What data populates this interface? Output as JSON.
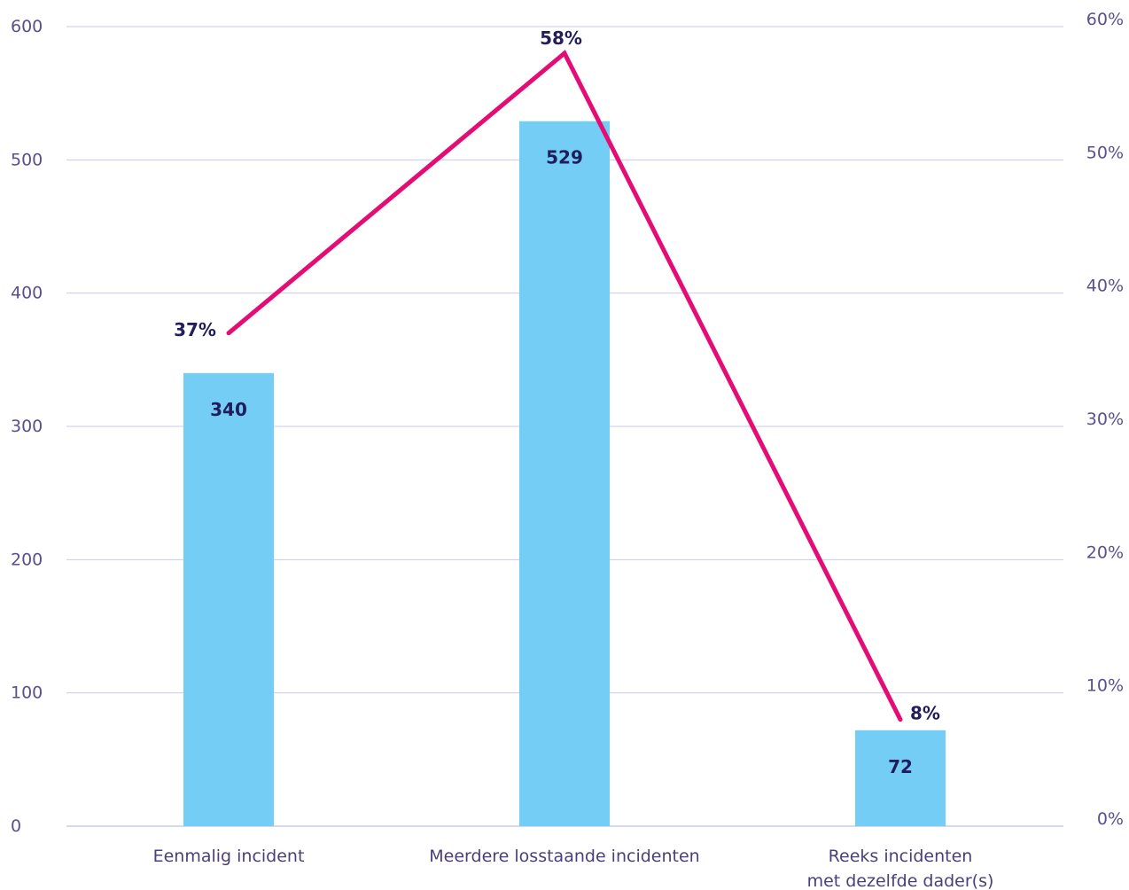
{
  "chart_data": {
    "type": "bar",
    "categories": [
      "Eenmalig incident",
      "Meerdere losstaande incidenten",
      "Reeks incidenten met dezelfde dader(s)"
    ],
    "category_lines": [
      [
        "Eenmalig incident"
      ],
      [
        "Meerdere losstaande incidenten"
      ],
      [
        "Reeks incidenten",
        "met dezelfde dader(s)"
      ]
    ],
    "series": [
      {
        "type": "bar",
        "values": [
          340,
          529,
          72
        ],
        "labels": [
          "340",
          "529",
          "72"
        ]
      },
      {
        "type": "line",
        "axis": "right",
        "values": [
          37,
          58,
          8
        ],
        "labels": [
          "37%",
          "58%",
          "8%"
        ]
      }
    ],
    "left_axis": {
      "ylim": [
        0,
        600
      ],
      "ticks": [
        0,
        100,
        200,
        300,
        400,
        500,
        600
      ],
      "tick_labels": [
        "0",
        "100",
        "200",
        "300",
        "400",
        "500",
        "600"
      ]
    },
    "right_axis": {
      "ylim": [
        0,
        60
      ],
      "ticks": [
        0,
        10,
        20,
        30,
        40,
        50,
        60
      ],
      "tick_labels": [
        "0%",
        "10%",
        "20%",
        "30%",
        "40%",
        "50%",
        "60%"
      ]
    },
    "grid": true,
    "legend": "none"
  },
  "colors": {
    "bar": "#74cdf4",
    "line": "#e40d75",
    "grid": "#c8cbe6",
    "axis_text": "#5a4f8f"
  }
}
